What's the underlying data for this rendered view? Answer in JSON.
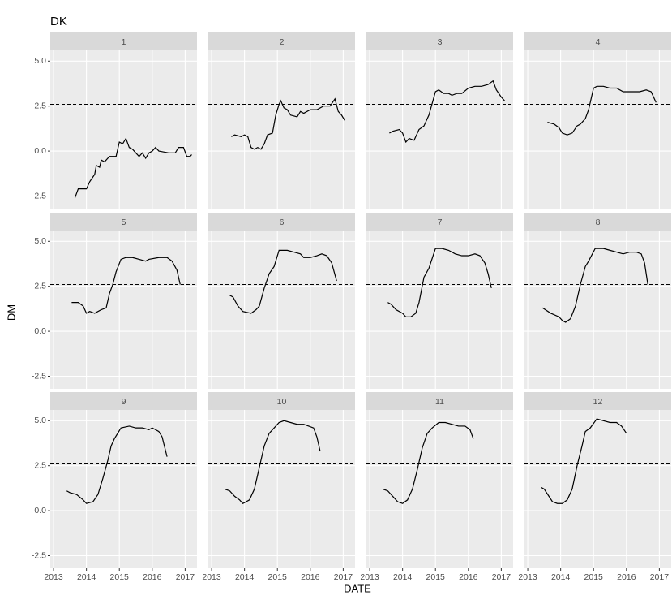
{
  "chart_data": {
    "type": "line",
    "title": "DK",
    "xlabel": "DATE",
    "ylabel": "DM",
    "color": "#000000",
    "xlim": [
      2012.9,
      2017.36
    ],
    "ylim": [
      -3.2,
      5.6
    ],
    "xticks": [
      2013,
      2014,
      2015,
      2016,
      2017
    ],
    "yticks": [
      {
        "value": -2.5,
        "label": "-2.5"
      },
      {
        "value": 0,
        "label": "0.0"
      },
      2.5,
      {
        "value": 5,
        "label": "5.0"
      }
    ],
    "hline": 2.6,
    "panels": [
      {
        "name": "1",
        "x": [
          2013.65,
          2013.75,
          2014.0,
          2014.1,
          2014.25,
          2014.3,
          2014.4,
          2014.45,
          2014.55,
          2014.7,
          2014.9,
          2015.0,
          2015.1,
          2015.2,
          2015.3,
          2015.4,
          2015.5,
          2015.6,
          2015.7,
          2015.8,
          2015.9,
          2016.0,
          2016.1,
          2016.2,
          2016.5,
          2016.7,
          2016.8,
          2016.95,
          2017.05,
          2017.15,
          2017.2
        ],
        "values": [
          -2.6,
          -2.1,
          -2.1,
          -1.7,
          -1.3,
          -0.8,
          -0.9,
          -0.5,
          -0.6,
          -0.3,
          -0.3,
          0.5,
          0.4,
          0.7,
          0.2,
          0.1,
          -0.1,
          -0.3,
          -0.1,
          -0.4,
          -0.1,
          0.0,
          0.2,
          0.0,
          -0.1,
          -0.1,
          0.2,
          0.2,
          -0.3,
          -0.3,
          -0.2
        ]
      },
      {
        "name": "2",
        "x": [
          2013.6,
          2013.7,
          2013.9,
          2014.0,
          2014.1,
          2014.2,
          2014.3,
          2014.4,
          2014.5,
          2014.6,
          2014.7,
          2014.85,
          2014.95,
          2015.05,
          2015.1,
          2015.2,
          2015.3,
          2015.4,
          2015.6,
          2015.7,
          2015.8,
          2016.0,
          2016.2,
          2016.4,
          2016.6,
          2016.75,
          2016.85,
          2016.95,
          2017.05
        ],
        "values": [
          0.8,
          0.9,
          0.8,
          0.9,
          0.8,
          0.2,
          0.1,
          0.2,
          0.1,
          0.4,
          0.9,
          1.0,
          2.0,
          2.6,
          2.8,
          2.4,
          2.3,
          2.0,
          1.9,
          2.2,
          2.1,
          2.3,
          2.3,
          2.5,
          2.5,
          2.9,
          2.2,
          2.0,
          1.7
        ]
      },
      {
        "name": "3",
        "x": [
          2013.6,
          2013.7,
          2013.9,
          2014.0,
          2014.1,
          2014.2,
          2014.35,
          2014.5,
          2014.65,
          2014.8,
          2015.0,
          2015.1,
          2015.25,
          2015.4,
          2015.5,
          2015.65,
          2015.8,
          2016.0,
          2016.2,
          2016.4,
          2016.6,
          2016.75,
          2016.85,
          2017.0,
          2017.1
        ],
        "values": [
          1.0,
          1.1,
          1.2,
          1.0,
          0.5,
          0.7,
          0.6,
          1.2,
          1.4,
          2.0,
          3.3,
          3.4,
          3.2,
          3.2,
          3.1,
          3.2,
          3.2,
          3.5,
          3.6,
          3.6,
          3.7,
          3.9,
          3.4,
          3.0,
          2.8
        ]
      },
      {
        "name": "4",
        "x": [
          2013.6,
          2013.8,
          2013.95,
          2014.05,
          2014.2,
          2014.35,
          2014.5,
          2014.6,
          2014.75,
          2014.85,
          2015.0,
          2015.1,
          2015.3,
          2015.5,
          2015.7,
          2015.9,
          2016.1,
          2016.4,
          2016.6,
          2016.75,
          2016.9
        ],
        "values": [
          1.6,
          1.5,
          1.3,
          1.0,
          0.9,
          1.0,
          1.4,
          1.5,
          1.8,
          2.3,
          3.5,
          3.6,
          3.6,
          3.5,
          3.5,
          3.3,
          3.3,
          3.3,
          3.4,
          3.3,
          2.7
        ]
      },
      {
        "name": "5",
        "x": [
          2013.55,
          2013.75,
          2013.9,
          2014.0,
          2014.1,
          2014.25,
          2014.45,
          2014.6,
          2014.7,
          2014.8,
          2014.9,
          2015.05,
          2015.2,
          2015.4,
          2015.6,
          2015.8,
          2015.9,
          2016.2,
          2016.45,
          2016.6,
          2016.75,
          2016.85
        ],
        "values": [
          1.6,
          1.6,
          1.4,
          1.0,
          1.1,
          1.0,
          1.2,
          1.3,
          2.1,
          2.6,
          3.3,
          4.0,
          4.1,
          4.1,
          4.0,
          3.9,
          4.0,
          4.1,
          4.1,
          3.9,
          3.4,
          2.6
        ]
      },
      {
        "name": "6",
        "x": [
          2013.55,
          2013.65,
          2013.8,
          2013.95,
          2014.2,
          2014.35,
          2014.45,
          2014.6,
          2014.75,
          2014.9,
          2015.05,
          2015.3,
          2015.5,
          2015.7,
          2015.8,
          2016.0,
          2016.2,
          2016.35,
          2016.5,
          2016.65,
          2016.8
        ],
        "values": [
          2.0,
          1.9,
          1.4,
          1.1,
          1.0,
          1.2,
          1.4,
          2.4,
          3.2,
          3.6,
          4.5,
          4.5,
          4.4,
          4.3,
          4.1,
          4.1,
          4.2,
          4.3,
          4.2,
          3.8,
          2.8
        ]
      },
      {
        "name": "7",
        "x": [
          2013.55,
          2013.65,
          2013.8,
          2014.0,
          2014.1,
          2014.25,
          2014.4,
          2014.5,
          2014.65,
          2014.8,
          2015.0,
          2015.2,
          2015.4,
          2015.6,
          2015.8,
          2016.0,
          2016.2,
          2016.35,
          2016.5,
          2016.6,
          2016.7
        ],
        "values": [
          1.6,
          1.5,
          1.2,
          1.0,
          0.8,
          0.8,
          1.0,
          1.6,
          3.0,
          3.5,
          4.6,
          4.6,
          4.5,
          4.3,
          4.2,
          4.2,
          4.3,
          4.2,
          3.8,
          3.2,
          2.4
        ]
      },
      {
        "name": "8",
        "x": [
          2013.45,
          2013.7,
          2013.95,
          2014.05,
          2014.15,
          2014.3,
          2014.45,
          2014.6,
          2014.75,
          2014.85,
          2015.05,
          2015.3,
          2015.5,
          2015.7,
          2015.9,
          2016.1,
          2016.3,
          2016.45,
          2016.55,
          2016.65
        ],
        "values": [
          1.3,
          1.0,
          0.8,
          0.6,
          0.5,
          0.7,
          1.4,
          2.6,
          3.6,
          3.9,
          4.6,
          4.6,
          4.5,
          4.4,
          4.3,
          4.4,
          4.4,
          4.3,
          3.8,
          2.6
        ]
      },
      {
        "name": "9",
        "x": [
          2013.4,
          2013.5,
          2013.7,
          2013.9,
          2014.0,
          2014.2,
          2014.35,
          2014.5,
          2014.65,
          2014.75,
          2014.85,
          2015.05,
          2015.3,
          2015.5,
          2015.7,
          2015.9,
          2016.0,
          2016.2,
          2016.3,
          2016.45
        ],
        "values": [
          1.1,
          1.0,
          0.9,
          0.6,
          0.4,
          0.5,
          0.9,
          1.8,
          2.8,
          3.6,
          4.0,
          4.6,
          4.7,
          4.6,
          4.6,
          4.5,
          4.6,
          4.4,
          4.1,
          3.0
        ]
      },
      {
        "name": "10",
        "x": [
          2013.4,
          2013.55,
          2013.7,
          2013.85,
          2013.95,
          2014.15,
          2014.3,
          2014.45,
          2014.6,
          2014.75,
          2014.9,
          2015.05,
          2015.2,
          2015.4,
          2015.6,
          2015.8,
          2015.95,
          2016.1,
          2016.2,
          2016.3
        ],
        "values": [
          1.2,
          1.1,
          0.8,
          0.6,
          0.4,
          0.6,
          1.2,
          2.4,
          3.6,
          4.3,
          4.6,
          4.9,
          5.0,
          4.9,
          4.8,
          4.8,
          4.7,
          4.6,
          4.1,
          3.3
        ]
      },
      {
        "name": "11",
        "x": [
          2013.4,
          2013.55,
          2013.75,
          2013.85,
          2014.0,
          2014.15,
          2014.3,
          2014.45,
          2014.6,
          2014.75,
          2014.9,
          2015.1,
          2015.3,
          2015.5,
          2015.7,
          2015.9,
          2016.05,
          2016.15
        ],
        "values": [
          1.2,
          1.1,
          0.7,
          0.5,
          0.4,
          0.6,
          1.2,
          2.3,
          3.5,
          4.3,
          4.6,
          4.9,
          4.9,
          4.8,
          4.7,
          4.7,
          4.5,
          4.0
        ]
      },
      {
        "name": "12",
        "x": [
          2013.4,
          2013.5,
          2013.75,
          2013.9,
          2014.05,
          2014.2,
          2014.35,
          2014.5,
          2014.65,
          2014.75,
          2014.9,
          2015.1,
          2015.3,
          2015.5,
          2015.7,
          2015.85,
          2016.0
        ],
        "values": [
          1.3,
          1.2,
          0.5,
          0.4,
          0.4,
          0.6,
          1.2,
          2.5,
          3.6,
          4.4,
          4.6,
          5.1,
          5.0,
          4.9,
          4.9,
          4.7,
          4.3
        ]
      }
    ]
  }
}
